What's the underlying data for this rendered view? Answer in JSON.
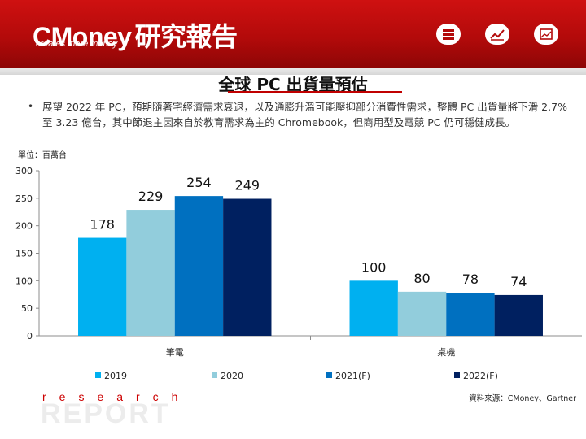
{
  "header": {
    "logo_text": "CMoney",
    "report_text": "研究報告",
    "tagline": "creates more money",
    "icons": [
      "stack-icon",
      "trend-chart-icon",
      "picture-icon"
    ]
  },
  "page_title": "全球 PC 出貨量預估",
  "bullet_text": "展望 2022 年 PC，預期隨著宅經濟需求衰退，以及通膨升溫可能壓抑部分消費性需求，整體 PC 出貨量將下滑 2.7% 至 3.23 億台，其中節退主因來自於教育需求為主的 Chromebook，但商用型及電競 PC 仍可穩健成長。",
  "unit_label": "單位：百萬台",
  "chart_data": {
    "type": "bar",
    "categories": [
      "筆電",
      "桌機"
    ],
    "series": [
      {
        "name": "2019",
        "values": [
          178,
          100
        ],
        "color": "#00b0f0"
      },
      {
        "name": "2020",
        "values": [
          229,
          80
        ],
        "color": "#92cddc"
      },
      {
        "name": "2021(F)",
        "values": [
          254,
          78
        ],
        "color": "#0070c0"
      },
      {
        "name": "2022(F)",
        "values": [
          249,
          74
        ],
        "color": "#002060"
      }
    ],
    "ylim": [
      0,
      300
    ],
    "yticks": [
      0,
      50,
      100,
      150,
      200,
      250,
      300
    ],
    "grid": false,
    "legend": "bottom"
  },
  "source": "資料來源：CMoney、Gartner",
  "footer": {
    "research": "research",
    "report": "REPORT"
  }
}
